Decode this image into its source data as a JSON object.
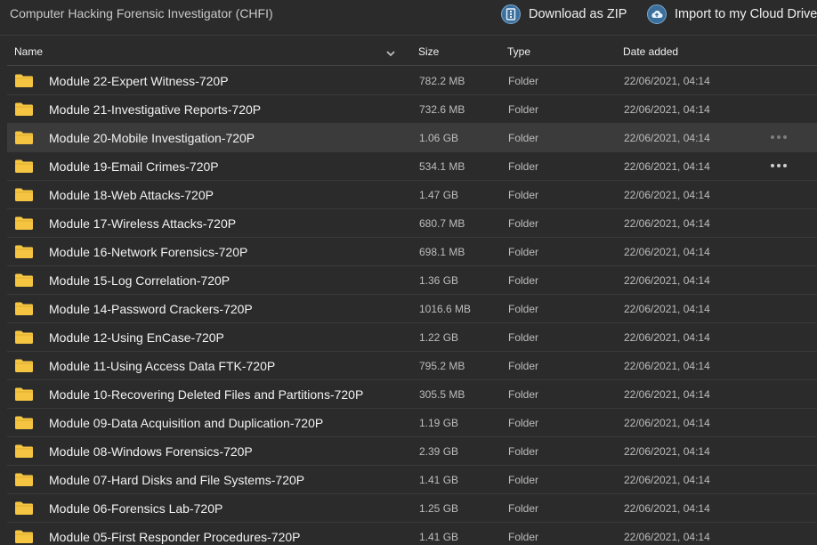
{
  "header": {
    "title": "Computer Hacking Forensic Investigator (CHFI)",
    "download_zip": "Download as ZIP",
    "import_cloud": "Import to my Cloud Drive"
  },
  "columns": {
    "name": "Name",
    "size": "Size",
    "type": "Type",
    "date": "Date added"
  },
  "rows": [
    {
      "name": "Module 22-Expert Witness-720P",
      "size": "782.2 MB",
      "type": "Folder",
      "date": "22/06/2021, 04:14"
    },
    {
      "name": "Module 21-Investigative Reports-720P",
      "size": "732.6 MB",
      "type": "Folder",
      "date": "22/06/2021, 04:14"
    },
    {
      "name": "Module 20-Mobile Investigation-720P",
      "size": "1.06 GB",
      "type": "Folder",
      "date": "22/06/2021, 04:14"
    },
    {
      "name": "Module 19-Email Crimes-720P",
      "size": "534.1 MB",
      "type": "Folder",
      "date": "22/06/2021, 04:14"
    },
    {
      "name": "Module 18-Web Attacks-720P",
      "size": "1.47 GB",
      "type": "Folder",
      "date": "22/06/2021, 04:14"
    },
    {
      "name": "Module 17-Wireless Attacks-720P",
      "size": "680.7 MB",
      "type": "Folder",
      "date": "22/06/2021, 04:14"
    },
    {
      "name": "Module 16-Network Forensics-720P",
      "size": "698.1 MB",
      "type": "Folder",
      "date": "22/06/2021, 04:14"
    },
    {
      "name": "Module 15-Log Correlation-720P",
      "size": "1.36 GB",
      "type": "Folder",
      "date": "22/06/2021, 04:14"
    },
    {
      "name": "Module 14-Password Crackers-720P",
      "size": "1016.6 MB",
      "type": "Folder",
      "date": "22/06/2021, 04:14"
    },
    {
      "name": "Module 12-Using EnCase-720P",
      "size": "1.22 GB",
      "type": "Folder",
      "date": "22/06/2021, 04:14"
    },
    {
      "name": "Module 11-Using Access Data FTK-720P",
      "size": "795.2 MB",
      "type": "Folder",
      "date": "22/06/2021, 04:14"
    },
    {
      "name": "Module 10-Recovering Deleted Files and Partitions-720P",
      "size": "305.5 MB",
      "type": "Folder",
      "date": "22/06/2021, 04:14"
    },
    {
      "name": "Module 09-Data Acquisition and Duplication-720P",
      "size": "1.19 GB",
      "type": "Folder",
      "date": "22/06/2021, 04:14"
    },
    {
      "name": "Module 08-Windows Forensics-720P",
      "size": "2.39 GB",
      "type": "Folder",
      "date": "22/06/2021, 04:14"
    },
    {
      "name": "Module 07-Hard Disks and File Systems-720P",
      "size": "1.41 GB",
      "type": "Folder",
      "date": "22/06/2021, 04:14"
    },
    {
      "name": "Module 06-Forensics Lab-720P",
      "size": "1.25 GB",
      "type": "Folder",
      "date": "22/06/2021, 04:14"
    },
    {
      "name": "Module 05-First Responder Procedures-720P",
      "size": "1.41 GB",
      "type": "Folder",
      "date": "22/06/2021, 04:14"
    }
  ],
  "colors": {
    "background": "#2b2b2c",
    "highlight_row": "#3b3b3c",
    "folder": "#f5c542",
    "icon_blue": "#3d6f9c"
  }
}
